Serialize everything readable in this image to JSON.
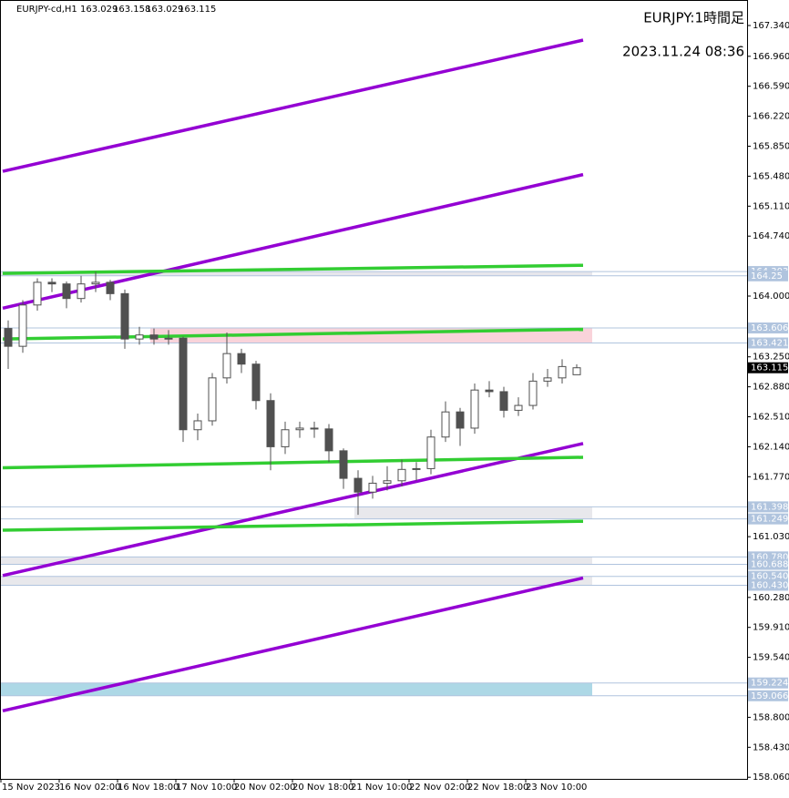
{
  "chart_data": {
    "type": "candlestick",
    "title": "EURJPY-cd,H1",
    "symbol_label": "EURJPY:1時間足",
    "timestamp": "2023.11.24 08:36",
    "up_color": "#ffffff",
    "down_color": "#505050",
    "xlim": [
      -2.25,
      202.75
    ],
    "ylim": [
      158.04,
      167.655
    ],
    "xticks": [
      {
        "value": -2,
        "label": "15 Nov 2023"
      },
      {
        "value": 14,
        "label": "16 Nov 02:00"
      },
      {
        "value": 30,
        "label": "16 Nov 18:00"
      },
      {
        "value": 46,
        "label": "17 Nov 10:00"
      },
      {
        "value": 62,
        "label": "20 Nov 02:00"
      },
      {
        "value": 78,
        "label": "20 Nov 18:00"
      },
      {
        "value": 94,
        "label": "21 Nov 10:00"
      },
      {
        "value": 110,
        "label": "22 Nov 02:00"
      },
      {
        "value": 126,
        "label": "22 Nov 18:00"
      },
      {
        "value": 142,
        "label": "23 Nov 10:00"
      }
    ],
    "yticks": [
      {
        "value": 167.34,
        "label": "167.340"
      },
      {
        "value": 166.96,
        "label": "166.960"
      },
      {
        "value": 166.59,
        "label": "166.590"
      },
      {
        "value": 166.22,
        "label": "166.220"
      },
      {
        "value": 165.85,
        "label": "165.850"
      },
      {
        "value": 165.48,
        "label": "165.480"
      },
      {
        "value": 165.11,
        "label": "165.110"
      },
      {
        "value": 164.74,
        "label": "164.740"
      },
      {
        "value": 164.0,
        "label": "164.000"
      },
      {
        "value": 163.25,
        "label": "163.250"
      },
      {
        "value": 162.88,
        "label": "162.880"
      },
      {
        "value": 162.51,
        "label": "162.510"
      },
      {
        "value": 162.14,
        "label": "162.140"
      },
      {
        "value": 161.77,
        "label": "161.770"
      },
      {
        "value": 161.03,
        "label": "161.030"
      },
      {
        "value": 160.28,
        "label": "160.280"
      },
      {
        "value": 159.91,
        "label": "159.910"
      },
      {
        "value": 159.54,
        "label": "159.540"
      },
      {
        "value": 158.8,
        "label": "158.800"
      },
      {
        "value": 158.43,
        "label": "158.430"
      },
      {
        "value": 158.06,
        "label": "158.060"
      }
    ],
    "candle_hours": [
      0,
      4,
      8,
      12,
      16,
      20,
      24,
      28,
      32,
      36,
      40,
      44,
      48,
      52,
      56,
      60,
      64,
      68,
      72,
      76,
      80,
      84,
      88,
      92,
      96,
      100,
      104,
      108,
      112,
      116,
      120,
      124,
      128,
      132,
      136,
      140,
      144,
      148,
      152,
      156
    ],
    "candles": [
      [
        163.6,
        163.7,
        163.1,
        163.38
      ],
      [
        163.38,
        163.95,
        163.3,
        163.89
      ],
      [
        163.89,
        164.22,
        163.82,
        164.17
      ],
      [
        164.17,
        164.22,
        164.05,
        164.15
      ],
      [
        164.15,
        164.18,
        163.85,
        163.97
      ],
      [
        163.97,
        164.25,
        163.92,
        164.15
      ],
      [
        164.15,
        164.3,
        164.05,
        164.17
      ],
      [
        164.17,
        164.2,
        163.95,
        164.03
      ],
      [
        164.03,
        164.08,
        163.35,
        163.47
      ],
      [
        163.47,
        163.62,
        163.4,
        163.52
      ],
      [
        163.52,
        163.6,
        163.4,
        163.47
      ],
      [
        163.47,
        163.58,
        163.4,
        163.48
      ],
      [
        163.48,
        163.5,
        162.2,
        162.35
      ],
      [
        162.35,
        162.55,
        162.22,
        162.46
      ],
      [
        162.46,
        163.05,
        162.4,
        162.99
      ],
      [
        162.99,
        163.55,
        162.92,
        163.29
      ],
      [
        163.29,
        163.35,
        163.05,
        163.16
      ],
      [
        163.16,
        163.2,
        162.6,
        162.71
      ],
      [
        162.71,
        162.8,
        161.85,
        162.14
      ],
      [
        162.14,
        162.45,
        162.05,
        162.35
      ],
      [
        162.35,
        162.45,
        162.25,
        162.37
      ],
      [
        162.37,
        162.45,
        162.25,
        162.36
      ],
      [
        162.36,
        162.42,
        161.95,
        162.09
      ],
      [
        162.09,
        162.12,
        161.62,
        161.75
      ],
      [
        161.75,
        161.85,
        161.3,
        161.58
      ],
      [
        161.58,
        161.78,
        161.5,
        161.69
      ],
      [
        161.69,
        161.9,
        161.6,
        161.72
      ],
      [
        161.72,
        161.98,
        161.65,
        161.86
      ],
      [
        161.86,
        161.95,
        161.72,
        161.87
      ],
      [
        161.87,
        162.35,
        161.8,
        162.26
      ],
      [
        162.26,
        162.7,
        162.2,
        162.57
      ],
      [
        162.57,
        162.62,
        162.15,
        162.37
      ],
      [
        162.37,
        162.92,
        162.3,
        162.84
      ],
      [
        162.84,
        162.95,
        162.75,
        162.82
      ],
      [
        162.82,
        162.88,
        162.5,
        162.59
      ],
      [
        162.59,
        162.75,
        162.52,
        162.65
      ],
      [
        162.65,
        163.05,
        162.6,
        162.95
      ],
      [
        162.95,
        163.1,
        162.88,
        162.99
      ],
      [
        162.99,
        163.22,
        162.92,
        163.13
      ],
      [
        163.029,
        163.158,
        163.029,
        163.115
      ]
    ],
    "lines": [
      {
        "color": "#9400d3",
        "x": [
          -1.5,
          157.75
        ],
        "y": [
          165.54,
          167.16
        ]
      },
      {
        "color": "#9400d3",
        "x": [
          -1.5,
          157.75
        ],
        "y": [
          163.85,
          165.5
        ]
      },
      {
        "color": "#9400d3",
        "x": [
          -1.5,
          157.75
        ],
        "y": [
          160.55,
          162.18
        ]
      },
      {
        "color": "#9400d3",
        "x": [
          -1.5,
          157.75
        ],
        "y": [
          158.88,
          160.52
        ]
      },
      {
        "color": "#32cd32",
        "x": [
          -1.5,
          157.75
        ],
        "y": [
          164.28,
          164.38
        ]
      },
      {
        "color": "#32cd32",
        "x": [
          -1.5,
          157.75
        ],
        "y": [
          163.47,
          163.59
        ]
      },
      {
        "color": "#32cd32",
        "x": [
          -1.5,
          157.75
        ],
        "y": [
          161.88,
          162.01
        ]
      },
      {
        "color": "#32cd32",
        "x": [
          -1.5,
          157.75
        ],
        "y": [
          161.11,
          161.22
        ]
      }
    ],
    "zones": [
      {
        "color": "#e6e6ec",
        "x": [
          -2.25,
          160.25
        ],
        "levels": [
          164.303,
          164.25
        ]
      },
      {
        "color": "#f9d3da",
        "x": [
          39,
          160.25
        ],
        "levels": [
          163.606,
          163.421
        ]
      },
      {
        "color": "#e8e8ec",
        "x": [
          95,
          160.25
        ],
        "levels": [
          161.398,
          161.249
        ]
      },
      {
        "color": "#e8e8ec",
        "x": [
          -2.25,
          160.25
        ],
        "levels": [
          {
            "value": 160.78,
            "label": "160.780"
          },
          160.688
        ]
      },
      {
        "color": "#e8e8ec",
        "x": [
          -2.25,
          160.25
        ],
        "levels": [
          {
            "value": 160.54,
            "label": "160.540"
          },
          {
            "value": 160.43,
            "label": "160.430"
          }
        ]
      },
      {
        "color": "#add8e6",
        "x": [
          -2.25,
          160.25
        ],
        "levels": [
          159.224,
          159.066
        ]
      }
    ]
  }
}
